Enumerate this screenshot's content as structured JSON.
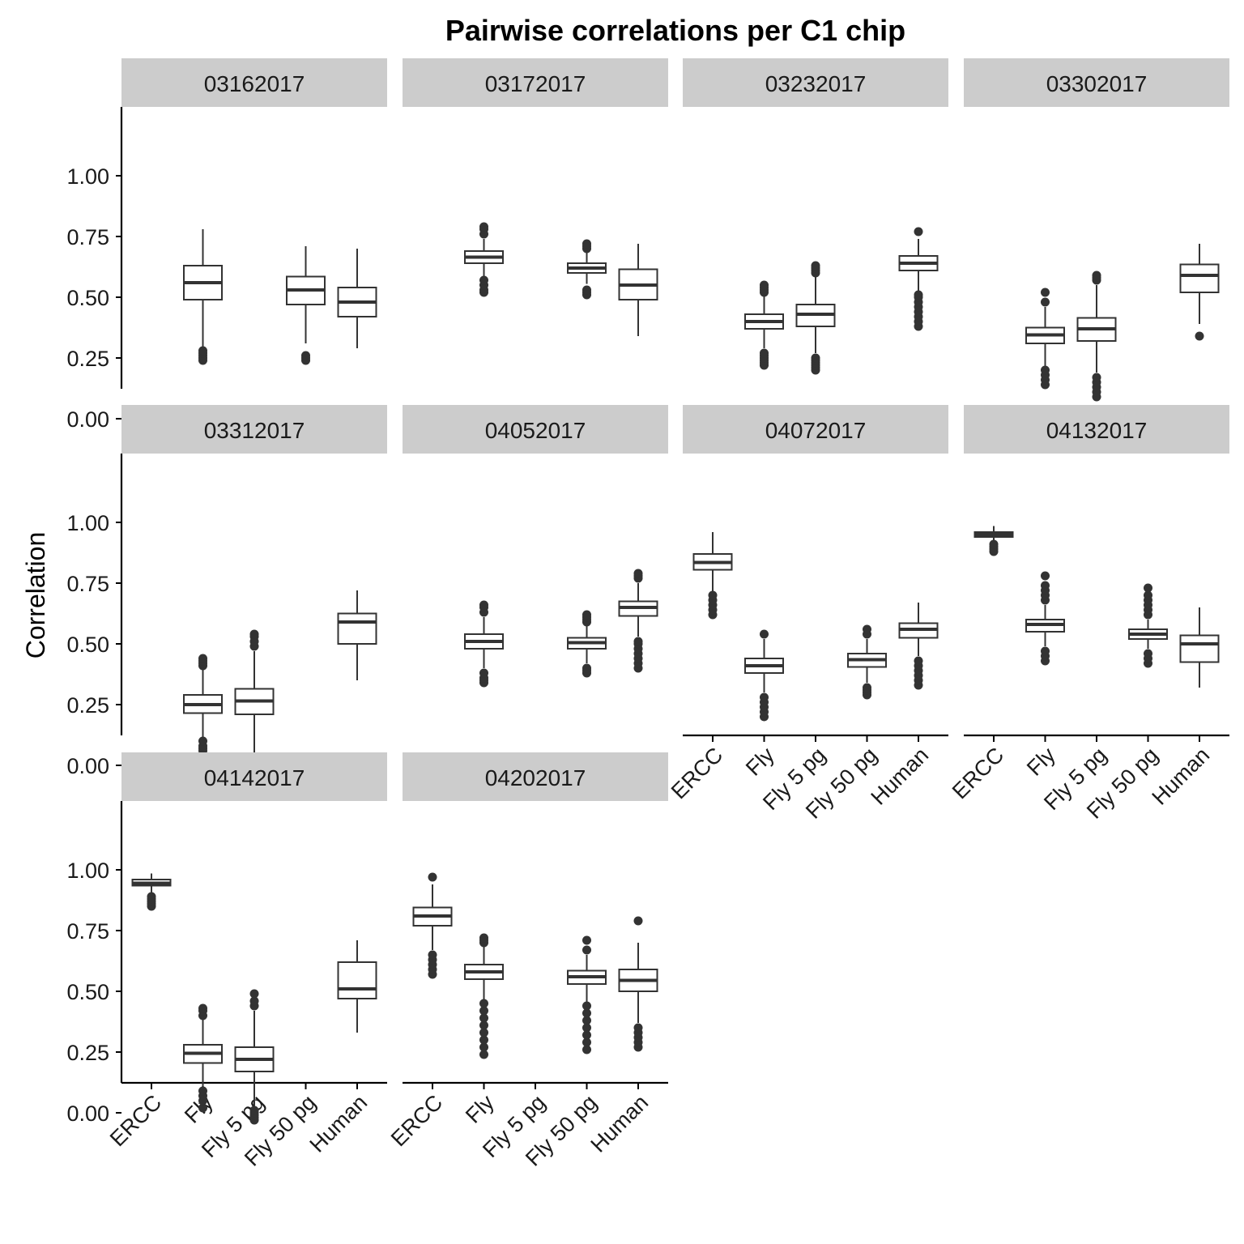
{
  "chart_data": {
    "type": "box",
    "title": "Pairwise correlations per C1 chip",
    "xlabel": "",
    "ylabel": "Correlation",
    "ylim": [
      -0.1,
      1.05
    ],
    "yticks": [
      "0.00",
      "0.25",
      "0.50",
      "0.75",
      "1.00"
    ],
    "ytick_values": [
      0,
      0.25,
      0.5,
      0.75,
      1.0
    ],
    "categories": [
      "ERCC",
      "Fly",
      "Fly 5 pg",
      "Fly 50 pg",
      "Human"
    ],
    "grid": false,
    "colors": {
      "box_line": "#333333",
      "strip_bg": "#cccccc",
      "axis": "#000000"
    },
    "panels": [
      {
        "name": "03162017",
        "boxes": [
          {
            "category": "Fly",
            "whisker_low": 0.29,
            "q1": 0.49,
            "median": 0.56,
            "q3": 0.63,
            "whisker_high": 0.78,
            "outliers": [
              0.24,
              0.25,
              0.26,
              0.27,
              0.28
            ]
          },
          {
            "category": "Fly 50 pg",
            "whisker_low": 0.31,
            "q1": 0.47,
            "median": 0.53,
            "q3": 0.585,
            "whisker_high": 0.71,
            "outliers": [
              0.24,
              0.25,
              0.26
            ]
          },
          {
            "category": "Human",
            "whisker_low": 0.29,
            "q1": 0.42,
            "median": 0.48,
            "q3": 0.54,
            "whisker_high": 0.7,
            "outliers": []
          }
        ]
      },
      {
        "name": "03172017",
        "boxes": [
          {
            "category": "Fly",
            "whisker_low": 0.58,
            "q1": 0.64,
            "median": 0.665,
            "q3": 0.69,
            "whisker_high": 0.74,
            "outliers": [
              0.52,
              0.53,
              0.55,
              0.57,
              0.76,
              0.78,
              0.79
            ]
          },
          {
            "category": "Fly 50 pg",
            "whisker_low": 0.555,
            "q1": 0.6,
            "median": 0.62,
            "q3": 0.64,
            "whisker_high": 0.69,
            "outliers": [
              0.51,
              0.52,
              0.53,
              0.7,
              0.71,
              0.72
            ]
          },
          {
            "category": "Human",
            "whisker_low": 0.34,
            "q1": 0.49,
            "median": 0.55,
            "q3": 0.615,
            "whisker_high": 0.72,
            "outliers": []
          }
        ]
      },
      {
        "name": "03232017",
        "boxes": [
          {
            "category": "Fly",
            "whisker_low": 0.29,
            "q1": 0.37,
            "median": 0.4,
            "q3": 0.43,
            "whisker_high": 0.51,
            "outliers": [
              0.22,
              0.23,
              0.24,
              0.25,
              0.26,
              0.27,
              0.52,
              0.53,
              0.54,
              0.55
            ]
          },
          {
            "category": "Fly 5 pg",
            "whisker_low": 0.27,
            "q1": 0.38,
            "median": 0.43,
            "q3": 0.47,
            "whisker_high": 0.59,
            "outliers": [
              0.2,
              0.21,
              0.22,
              0.23,
              0.24,
              0.25,
              0.6,
              0.61,
              0.62,
              0.63
            ]
          },
          {
            "category": "Human",
            "whisker_low": 0.52,
            "q1": 0.61,
            "median": 0.64,
            "q3": 0.67,
            "whisker_high": 0.74,
            "outliers": [
              0.38,
              0.4,
              0.42,
              0.44,
              0.46,
              0.48,
              0.5,
              0.51,
              0.77
            ]
          }
        ]
      },
      {
        "name": "03302017",
        "boxes": [
          {
            "category": "Fly",
            "whisker_low": 0.21,
            "q1": 0.31,
            "median": 0.345,
            "q3": 0.375,
            "whisker_high": 0.46,
            "outliers": [
              0.14,
              0.16,
              0.18,
              0.2,
              0.48,
              0.52
            ]
          },
          {
            "category": "Fly 5 pg",
            "whisker_low": 0.19,
            "q1": 0.32,
            "median": 0.37,
            "q3": 0.415,
            "whisker_high": 0.55,
            "outliers": [
              0.09,
              0.11,
              0.13,
              0.15,
              0.17,
              0.57,
              0.58,
              0.59
            ]
          },
          {
            "category": "Human",
            "whisker_low": 0.39,
            "q1": 0.52,
            "median": 0.59,
            "q3": 0.635,
            "whisker_high": 0.72,
            "outliers": [
              0.34
            ]
          }
        ]
      },
      {
        "name": "03312017",
        "boxes": [
          {
            "category": "Fly",
            "whisker_low": 0.11,
            "q1": 0.215,
            "median": 0.25,
            "q3": 0.29,
            "whisker_high": 0.4,
            "outliers": [
              0.0,
              0.06,
              0.07,
              0.08,
              0.1,
              0.41,
              0.42,
              0.43,
              0.44
            ]
          },
          {
            "category": "Fly 5 pg",
            "whisker_low": 0.05,
            "q1": 0.21,
            "median": 0.265,
            "q3": 0.315,
            "whisker_high": 0.47,
            "outliers": [
              -0.07,
              -0.05,
              -0.03,
              -0.01,
              0.01,
              0.03,
              0.49,
              0.51,
              0.53,
              0.54
            ]
          },
          {
            "category": "Human",
            "whisker_low": 0.35,
            "q1": 0.5,
            "median": 0.59,
            "q3": 0.625,
            "whisker_high": 0.72,
            "outliers": []
          }
        ]
      },
      {
        "name": "04052017",
        "boxes": [
          {
            "category": "Fly",
            "whisker_low": 0.4,
            "q1": 0.48,
            "median": 0.51,
            "q3": 0.54,
            "whisker_high": 0.61,
            "outliers": [
              0.34,
              0.35,
              0.36,
              0.38,
              0.63,
              0.65,
              0.66
            ]
          },
          {
            "category": "Fly 50 pg",
            "whisker_low": 0.42,
            "q1": 0.48,
            "median": 0.505,
            "q3": 0.525,
            "whisker_high": 0.58,
            "outliers": [
              0.38,
              0.39,
              0.4,
              0.59,
              0.6,
              0.61,
              0.62
            ]
          },
          {
            "category": "Human",
            "whisker_low": 0.53,
            "q1": 0.615,
            "median": 0.65,
            "q3": 0.675,
            "whisker_high": 0.75,
            "outliers": [
              0.4,
              0.42,
              0.44,
              0.46,
              0.48,
              0.5,
              0.51,
              0.77,
              0.78,
              0.79
            ]
          }
        ]
      },
      {
        "name": "04072017",
        "boxes": [
          {
            "category": "ERCC",
            "whisker_low": 0.71,
            "q1": 0.805,
            "median": 0.835,
            "q3": 0.87,
            "whisker_high": 0.96,
            "outliers": [
              0.62,
              0.64,
              0.66,
              0.68,
              0.7
            ]
          },
          {
            "category": "Fly",
            "whisker_low": 0.3,
            "q1": 0.38,
            "median": 0.41,
            "q3": 0.44,
            "whisker_high": 0.52,
            "outliers": [
              0.2,
              0.22,
              0.24,
              0.26,
              0.28,
              0.54
            ]
          },
          {
            "category": "Fly 50 pg",
            "whisker_low": 0.34,
            "q1": 0.405,
            "median": 0.435,
            "q3": 0.46,
            "whisker_high": 0.52,
            "outliers": [
              0.29,
              0.3,
              0.31,
              0.32,
              0.54,
              0.56
            ]
          },
          {
            "category": "Human",
            "whisker_low": 0.45,
            "q1": 0.525,
            "median": 0.56,
            "q3": 0.585,
            "whisker_high": 0.67,
            "outliers": [
              0.33,
              0.35,
              0.37,
              0.39,
              0.41,
              0.43
            ]
          }
        ]
      },
      {
        "name": "04132017",
        "boxes": [
          {
            "category": "ERCC",
            "whisker_low": 0.915,
            "q1": 0.94,
            "median": 0.95,
            "q3": 0.96,
            "whisker_high": 0.985,
            "outliers": [
              0.88,
              0.89,
              0.9,
              0.91
            ]
          },
          {
            "category": "Fly",
            "whisker_low": 0.49,
            "q1": 0.55,
            "median": 0.58,
            "q3": 0.6,
            "whisker_high": 0.66,
            "outliers": [
              0.43,
              0.45,
              0.47,
              0.68,
              0.7,
              0.72,
              0.74,
              0.78
            ]
          },
          {
            "category": "Fly 50 pg",
            "whisker_low": 0.48,
            "q1": 0.52,
            "median": 0.54,
            "q3": 0.56,
            "whisker_high": 0.6,
            "outliers": [
              0.42,
              0.44,
              0.46,
              0.62,
              0.64,
              0.66,
              0.68,
              0.7,
              0.73
            ]
          },
          {
            "category": "Human",
            "whisker_low": 0.32,
            "q1": 0.425,
            "median": 0.5,
            "q3": 0.535,
            "whisker_high": 0.65,
            "outliers": []
          }
        ]
      },
      {
        "name": "04142017",
        "boxes": [
          {
            "category": "ERCC",
            "whisker_low": 0.9,
            "q1": 0.935,
            "median": 0.945,
            "q3": 0.96,
            "whisker_high": 0.985,
            "outliers": [
              0.85,
              0.86,
              0.87,
              0.88,
              0.89
            ]
          },
          {
            "category": "Fly",
            "whisker_low": 0.11,
            "q1": 0.205,
            "median": 0.245,
            "q3": 0.28,
            "whisker_high": 0.39,
            "outliers": [
              0.02,
              0.05,
              0.07,
              0.09,
              0.4,
              0.42,
              0.43
            ]
          },
          {
            "category": "Fly 5 pg",
            "whisker_low": 0.02,
            "q1": 0.17,
            "median": 0.22,
            "q3": 0.27,
            "whisker_high": 0.42,
            "outliers": [
              -0.03,
              -0.02,
              -0.01,
              0.0,
              0.01,
              0.44,
              0.46,
              0.49
            ]
          },
          {
            "category": "Human",
            "whisker_low": 0.33,
            "q1": 0.47,
            "median": 0.51,
            "q3": 0.62,
            "whisker_high": 0.71,
            "outliers": []
          }
        ]
      },
      {
        "name": "04202017",
        "boxes": [
          {
            "category": "ERCC",
            "whisker_low": 0.67,
            "q1": 0.77,
            "median": 0.81,
            "q3": 0.845,
            "whisker_high": 0.94,
            "outliers": [
              0.57,
              0.59,
              0.61,
              0.63,
              0.65,
              0.97
            ]
          },
          {
            "category": "Fly",
            "whisker_low": 0.46,
            "q1": 0.55,
            "median": 0.58,
            "q3": 0.61,
            "whisker_high": 0.69,
            "outliers": [
              0.24,
              0.27,
              0.3,
              0.33,
              0.36,
              0.39,
              0.42,
              0.45,
              0.7,
              0.71,
              0.72
            ]
          },
          {
            "category": "Fly 50 pg",
            "whisker_low": 0.45,
            "q1": 0.53,
            "median": 0.56,
            "q3": 0.585,
            "whisker_high": 0.65,
            "outliers": [
              0.26,
              0.29,
              0.32,
              0.35,
              0.38,
              0.41,
              0.44,
              0.67,
              0.71
            ]
          },
          {
            "category": "Human",
            "whisker_low": 0.37,
            "q1": 0.5,
            "median": 0.545,
            "q3": 0.59,
            "whisker_high": 0.7,
            "outliers": [
              0.27,
              0.29,
              0.31,
              0.33,
              0.35,
              0.79
            ]
          }
        ]
      }
    ]
  }
}
